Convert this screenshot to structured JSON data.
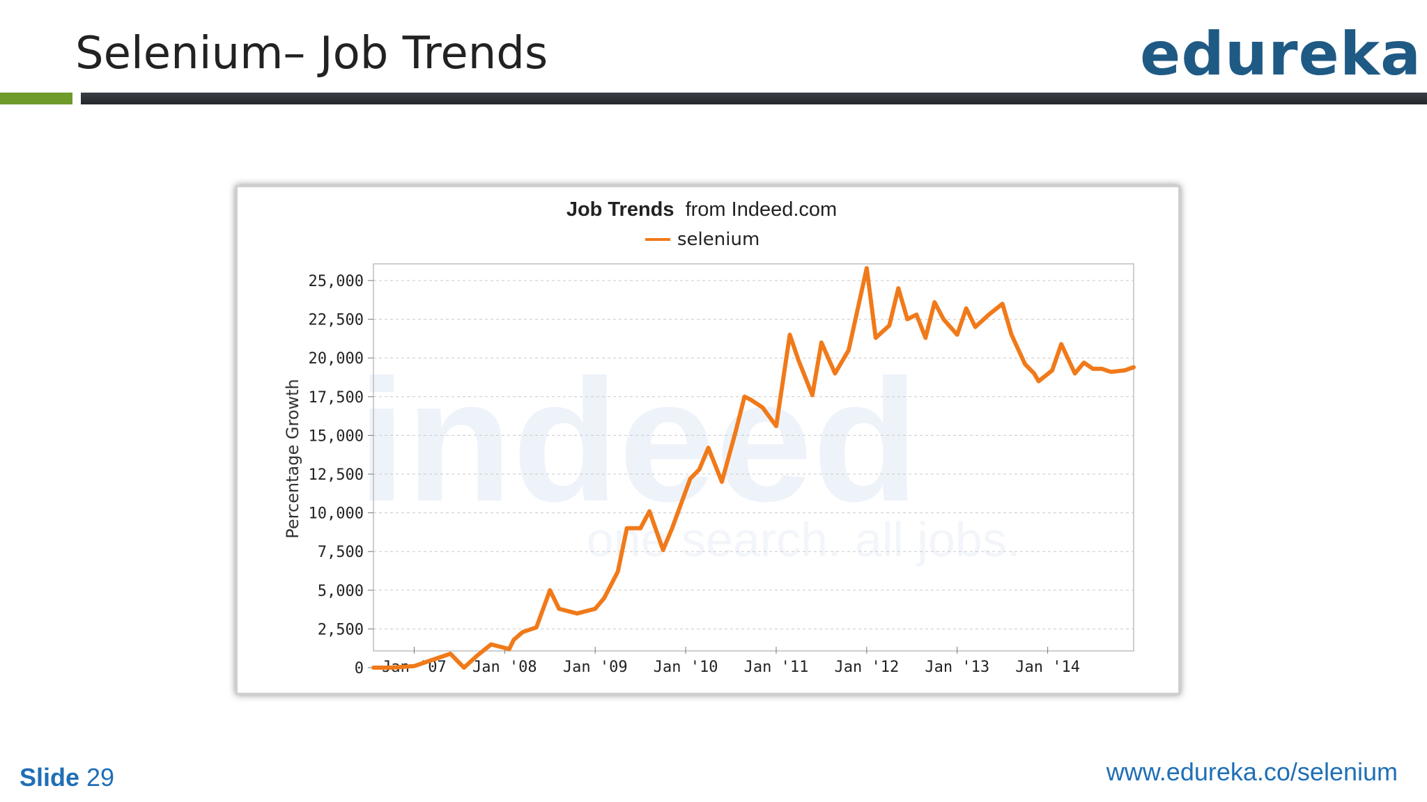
{
  "slide": {
    "title": "Selenium– Job Trends",
    "logo_text": "edureka!",
    "footer_label": "Slide",
    "footer_number": "29",
    "footer_url": "www.edureka.co/selenium",
    "colors": {
      "logo": "#1f5a85",
      "accent_green": "#6e9b2a",
      "rule_dark": "#2b2f35",
      "footer": "#1f6fb5"
    }
  },
  "chart_data": {
    "type": "line",
    "title_bold": "Job Trends",
    "title_rest": "from Indeed.com",
    "ylabel": "Percentage Growth",
    "xlabel": "",
    "watermark": "indeed",
    "watermark_tagline": "one search. all jobs.",
    "ylim": [
      0,
      25000
    ],
    "yticks": [
      "0",
      "2,500",
      "5,000",
      "7,500",
      "10,000",
      "12,500",
      "15,000",
      "17,500",
      "20,000",
      "22,500",
      "25,000"
    ],
    "xlim": [
      2006.55,
      2014.95
    ],
    "xticks": [
      {
        "x": 2007.0,
        "label": "Jan '07"
      },
      {
        "x": 2008.0,
        "label": "Jan '08"
      },
      {
        "x": 2009.0,
        "label": "Jan '09"
      },
      {
        "x": 2010.0,
        "label": "Jan '10"
      },
      {
        "x": 2011.0,
        "label": "Jan '11"
      },
      {
        "x": 2012.0,
        "label": "Jan '12"
      },
      {
        "x": 2013.0,
        "label": "Jan '13"
      },
      {
        "x": 2014.0,
        "label": "Jan '14"
      }
    ],
    "grid": true,
    "legend": "top-center",
    "series": [
      {
        "name": "selenium",
        "color": "#f07a1a",
        "x": [
          2006.55,
          2006.75,
          2007.0,
          2007.2,
          2007.4,
          2007.55,
          2007.7,
          2007.85,
          2008.05,
          2008.1,
          2008.2,
          2008.35,
          2008.5,
          2008.6,
          2008.8,
          2009.0,
          2009.1,
          2009.25,
          2009.35,
          2009.5,
          2009.6,
          2009.75,
          2009.85,
          2010.05,
          2010.15,
          2010.25,
          2010.4,
          2010.55,
          2010.65,
          2010.72,
          2010.85,
          2011.0,
          2011.15,
          2011.25,
          2011.4,
          2011.5,
          2011.65,
          2011.8,
          2012.0,
          2012.1,
          2012.25,
          2012.35,
          2012.45,
          2012.55,
          2012.65,
          2012.75,
          2012.85,
          2013.0,
          2013.1,
          2013.2,
          2013.35,
          2013.5,
          2013.6,
          2013.75,
          2013.85,
          2013.9,
          2014.05,
          2014.15,
          2014.3,
          2014.4,
          2014.5,
          2014.6,
          2014.7,
          2014.85,
          2014.95
        ],
        "y": [
          0,
          0,
          100,
          500,
          900,
          0,
          800,
          1500,
          1200,
          1800,
          2300,
          2600,
          5000,
          3800,
          3500,
          3800,
          4500,
          6200,
          9000,
          9000,
          10100,
          7600,
          9000,
          12200,
          12800,
          14200,
          12000,
          15200,
          17500,
          17300,
          16800,
          15600,
          21500,
          19800,
          17600,
          21000,
          19000,
          20500,
          25800,
          21300,
          22100,
          24500,
          22500,
          22800,
          21300,
          23600,
          22500,
          21500,
          23200,
          22000,
          22800,
          23500,
          21500,
          19600,
          19000,
          18500,
          19200,
          20900,
          19000,
          19700,
          19300,
          19300,
          19100,
          19200,
          19400
        ]
      }
    ]
  }
}
